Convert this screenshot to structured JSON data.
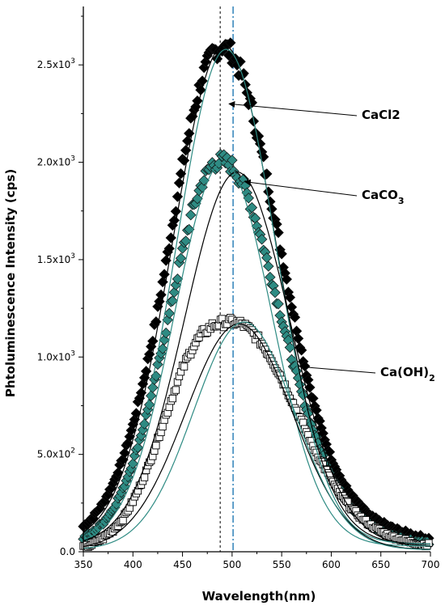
{
  "chart_data": {
    "type": "scatter",
    "title": "",
    "xlabel": "Wavelength(nm)",
    "ylabel": "Phtoluminescence Intensity (cps)",
    "xlim": [
      350,
      700
    ],
    "ylim": [
      0,
      2800
    ],
    "x_ticks": [
      350,
      400,
      450,
      500,
      550,
      600,
      650,
      700
    ],
    "y_ticks": [
      {
        "value": 0,
        "mant": "0.0",
        "exp": ""
      },
      {
        "value": 500,
        "mant": "5.0x10",
        "exp": "2"
      },
      {
        "value": 1000,
        "mant": "1.0x10",
        "exp": "3"
      },
      {
        "value": 1500,
        "mant": "1.5x10",
        "exp": "3"
      },
      {
        "value": 2000,
        "mant": "2.0x10",
        "exp": "3"
      },
      {
        "value": 2500,
        "mant": "2.5x10",
        "exp": "3"
      }
    ],
    "grid": false,
    "reference_lines": [
      {
        "x": 488,
        "style": "dotted",
        "color": "#000000"
      },
      {
        "x": 501,
        "style": "dash-dot",
        "color": "#1f78b4"
      }
    ],
    "series": [
      {
        "name": "CaCl2",
        "marker": "diamond-filled",
        "color": "#000000",
        "x": [
          350,
          360,
          370,
          380,
          390,
          400,
          410,
          420,
          430,
          440,
          450,
          460,
          470,
          480,
          490,
          500,
          510,
          520,
          530,
          540,
          550,
          560,
          570,
          580,
          590,
          600,
          610,
          620,
          630,
          640,
          650,
          660,
          670,
          680,
          690,
          700
        ],
        "y": [
          130,
          180,
          250,
          350,
          480,
          650,
          860,
          1100,
          1380,
          1680,
          1980,
          2240,
          2440,
          2560,
          2600,
          2560,
          2450,
          2270,
          2040,
          1790,
          1530,
          1270,
          1030,
          810,
          630,
          480,
          370,
          290,
          230,
          180,
          150,
          125,
          105,
          90,
          75,
          65
        ]
      },
      {
        "name": "CaCO3",
        "marker": "diamond-filled",
        "color": "#2e8b83",
        "x": [
          350,
          360,
          370,
          380,
          390,
          400,
          410,
          420,
          430,
          440,
          450,
          460,
          470,
          480,
          490,
          500,
          510,
          520,
          530,
          540,
          550,
          560,
          570,
          580,
          590,
          600,
          610,
          620,
          630,
          640,
          650,
          660,
          670,
          680,
          690,
          700
        ],
        "y": [
          70,
          100,
          150,
          220,
          320,
          460,
          630,
          830,
          1060,
          1300,
          1540,
          1750,
          1900,
          1990,
          2010,
          1980,
          1900,
          1770,
          1600,
          1400,
          1200,
          1000,
          820,
          650,
          510,
          390,
          300,
          230,
          175,
          135,
          105,
          85,
          70,
          60,
          50,
          45
        ]
      },
      {
        "name": "Ca(OH)2",
        "marker": "square-open",
        "color": "#000000",
        "x": [
          350,
          360,
          370,
          380,
          390,
          400,
          410,
          420,
          430,
          440,
          450,
          460,
          470,
          480,
          490,
          500,
          510,
          520,
          530,
          540,
          550,
          560,
          570,
          580,
          590,
          600,
          610,
          620,
          630,
          640,
          650,
          660,
          670,
          680,
          690,
          700
        ],
        "y": [
          20,
          40,
          70,
          110,
          170,
          260,
          370,
          500,
          650,
          800,
          940,
          1050,
          1120,
          1160,
          1175,
          1180,
          1170,
          1130,
          1070,
          990,
          890,
          780,
          670,
          560,
          460,
          370,
          290,
          225,
          175,
          135,
          105,
          80,
          65,
          50,
          40,
          35
        ]
      }
    ],
    "fits": [
      {
        "of": "CaCl2",
        "color": "#000000",
        "peak": 2600,
        "center": 492,
        "sigma": 52,
        "base": 40
      },
      {
        "of": "CaCl2",
        "color": "#2e8b83",
        "peak": 2580,
        "center": 494,
        "sigma": 50,
        "base": 40
      },
      {
        "of": "CaCO3",
        "color": "#000000",
        "peak": 1950,
        "center": 505,
        "sigma": 53,
        "base": 30
      },
      {
        "of": "CaCO3",
        "color": "#2e8b83",
        "peak": 2000,
        "center": 491,
        "sigma": 49,
        "base": 30
      },
      {
        "of": "Ca(OH)2",
        "color": "#000000",
        "peak": 1170,
        "center": 507,
        "sigma": 54,
        "base": 10
      },
      {
        "of": "Ca(OH)2",
        "color": "#2e8b83",
        "peak": 1180,
        "center": 512,
        "sigma": 51,
        "base": 10
      }
    ],
    "annotations": [
      {
        "text": "CaCl2",
        "sub": "",
        "arrow_to": [
          497,
          2300
        ]
      },
      {
        "text": "CaCO",
        "sub": "3",
        "arrow_to": [
          513,
          1900
        ]
      },
      {
        "text": "Ca(OH)",
        "sub": "2",
        "arrow_to": [
          569,
          950
        ]
      }
    ]
  }
}
